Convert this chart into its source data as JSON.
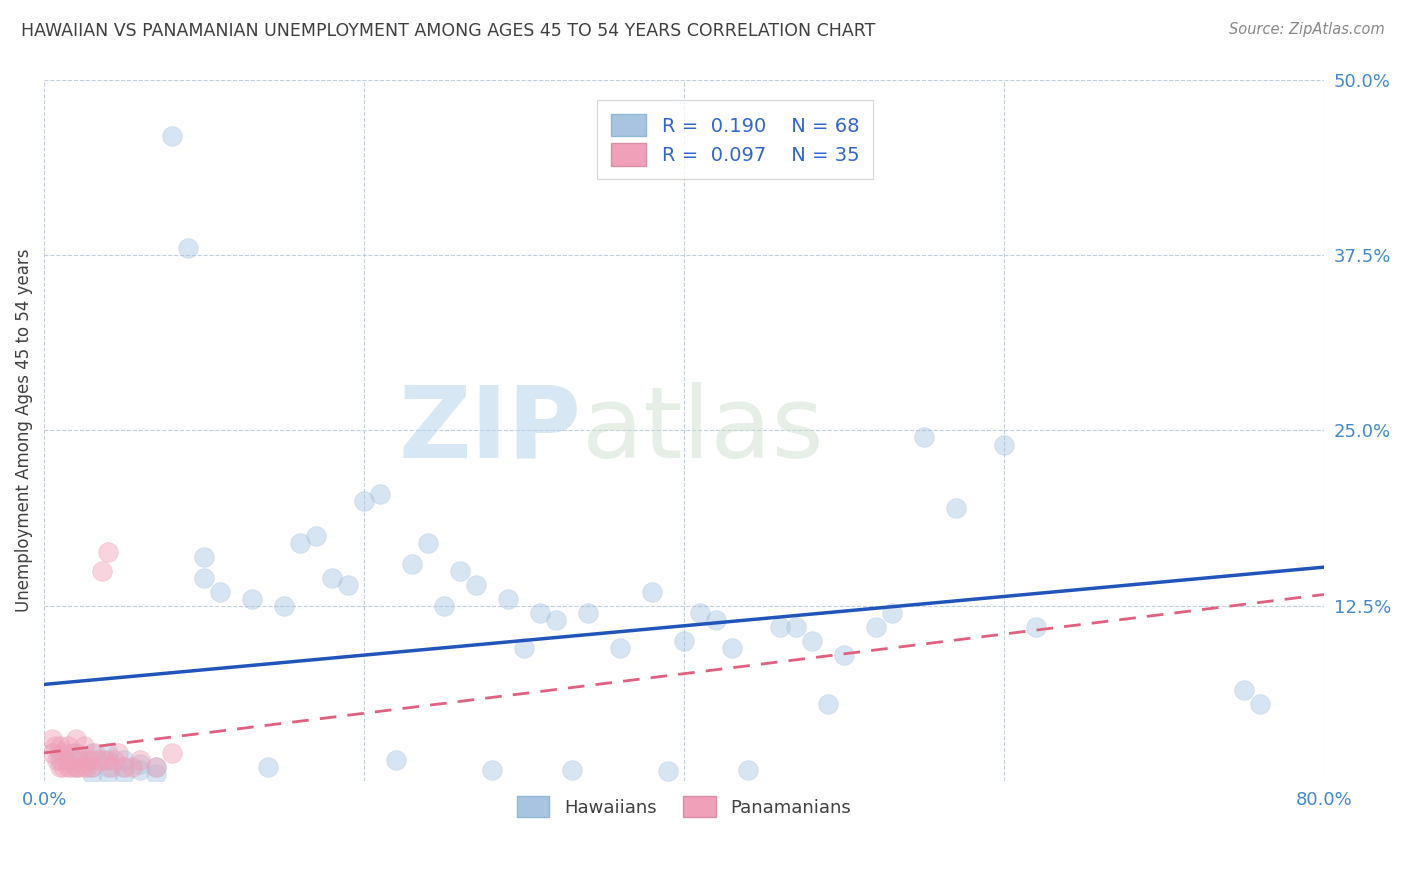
{
  "title": "HAWAIIAN VS PANAMANIAN UNEMPLOYMENT AMONG AGES 45 TO 54 YEARS CORRELATION CHART",
  "source": "Source: ZipAtlas.com",
  "ylabel": "Unemployment Among Ages 45 to 54 years",
  "xlim": [
    0.0,
    0.8
  ],
  "ylim": [
    0.0,
    0.5
  ],
  "xticks": [
    0.0,
    0.2,
    0.4,
    0.6,
    0.8
  ],
  "xtick_labels": [
    "0.0%",
    "",
    "",
    "",
    "80.0%"
  ],
  "ytick_labels_right": [
    "50.0%",
    "37.5%",
    "25.0%",
    "12.5%",
    ""
  ],
  "yticks_right": [
    0.5,
    0.375,
    0.25,
    0.125,
    0.0
  ],
  "hawaiian_color": "#a8c4e0",
  "panamanian_color": "#f0a0b8",
  "hawaiian_line_color": "#2255bb",
  "panamanian_line_color": "#e06080",
  "legend_R_hawaiian": "0.190",
  "legend_N_hawaiian": "68",
  "legend_R_panamanian": "0.097",
  "legend_N_panamanian": "35",
  "hawaiian_x": [
    0.01,
    0.01,
    0.02,
    0.02,
    0.02,
    0.03,
    0.03,
    0.03,
    0.03,
    0.04,
    0.04,
    0.04,
    0.04,
    0.05,
    0.05,
    0.05,
    0.06,
    0.06,
    0.07,
    0.07,
    0.08,
    0.09,
    0.1,
    0.1,
    0.11,
    0.13,
    0.14,
    0.15,
    0.16,
    0.17,
    0.18,
    0.19,
    0.2,
    0.21,
    0.22,
    0.23,
    0.24,
    0.25,
    0.26,
    0.27,
    0.28,
    0.29,
    0.3,
    0.31,
    0.32,
    0.33,
    0.34,
    0.36,
    0.38,
    0.39,
    0.4,
    0.41,
    0.42,
    0.43,
    0.44,
    0.46,
    0.47,
    0.48,
    0.49,
    0.5,
    0.52,
    0.53,
    0.55,
    0.57,
    0.6,
    0.62,
    0.75,
    0.76
  ],
  "hawaiian_y": [
    0.015,
    0.02,
    0.01,
    0.015,
    0.02,
    0.005,
    0.01,
    0.015,
    0.02,
    0.005,
    0.01,
    0.015,
    0.02,
    0.005,
    0.01,
    0.015,
    0.008,
    0.012,
    0.005,
    0.01,
    0.46,
    0.38,
    0.145,
    0.16,
    0.135,
    0.13,
    0.01,
    0.125,
    0.17,
    0.175,
    0.145,
    0.14,
    0.2,
    0.205,
    0.015,
    0.155,
    0.17,
    0.125,
    0.15,
    0.14,
    0.008,
    0.13,
    0.095,
    0.12,
    0.115,
    0.008,
    0.12,
    0.095,
    0.135,
    0.007,
    0.1,
    0.12,
    0.115,
    0.095,
    0.008,
    0.11,
    0.11,
    0.1,
    0.055,
    0.09,
    0.11,
    0.12,
    0.245,
    0.195,
    0.24,
    0.11,
    0.065,
    0.055
  ],
  "panamanian_x": [
    0.005,
    0.005,
    0.007,
    0.008,
    0.01,
    0.01,
    0.012,
    0.012,
    0.014,
    0.015,
    0.015,
    0.017,
    0.018,
    0.02,
    0.02,
    0.022,
    0.023,
    0.025,
    0.025,
    0.027,
    0.028,
    0.03,
    0.032,
    0.034,
    0.036,
    0.038,
    0.04,
    0.042,
    0.044,
    0.046,
    0.05,
    0.055,
    0.06,
    0.07,
    0.08
  ],
  "panamanian_y": [
    0.02,
    0.03,
    0.025,
    0.015,
    0.01,
    0.025,
    0.01,
    0.02,
    0.015,
    0.01,
    0.025,
    0.01,
    0.02,
    0.01,
    0.03,
    0.01,
    0.015,
    0.01,
    0.025,
    0.01,
    0.015,
    0.01,
    0.02,
    0.015,
    0.15,
    0.015,
    0.163,
    0.01,
    0.015,
    0.02,
    0.01,
    0.01,
    0.015,
    0.01,
    0.02
  ],
  "watermark_zip": "ZIP",
  "watermark_atlas": "atlas",
  "background_color": "#ffffff",
  "grid_color": "#c0d0e0",
  "title_color": "#404040",
  "axis_label_color": "#404040",
  "tick_color": "#4488cc",
  "marker_size": 200,
  "marker_alpha": 0.45,
  "marker_edge_alpha": 0.7
}
